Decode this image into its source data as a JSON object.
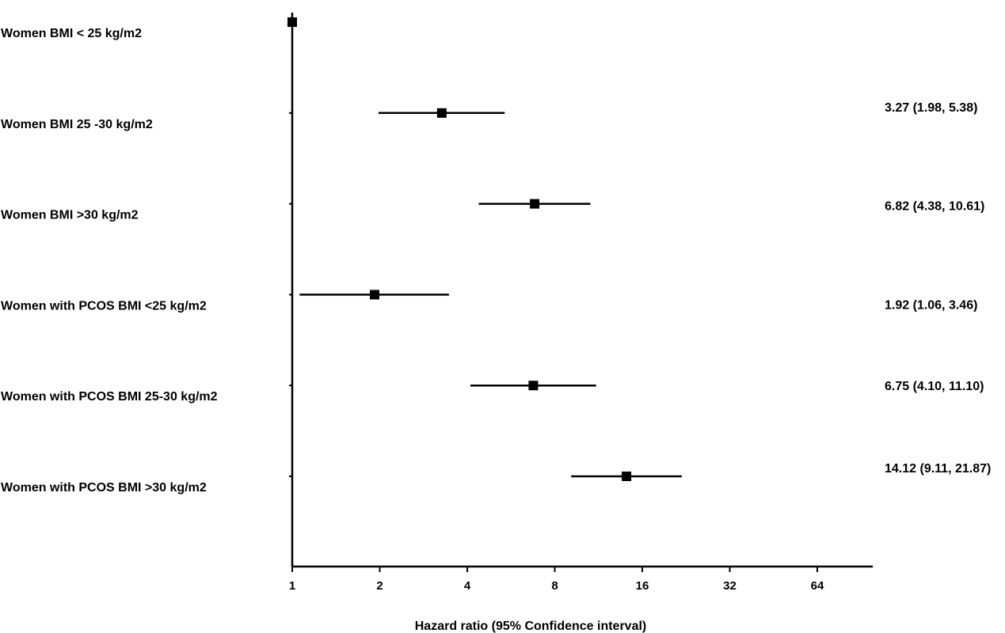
{
  "chart_data": {
    "type": "forest",
    "title": "",
    "xlabel": "Hazard ratio (95%  Confidence interval)",
    "ylabel": "",
    "x_scale": "log2",
    "xlim": [
      1,
      90
    ],
    "x_ticks": [
      1,
      2,
      4,
      8,
      16,
      32,
      64
    ],
    "x_tick_labels": [
      "1",
      "2",
      "4",
      "8",
      "16",
      "32",
      "64"
    ],
    "reference_line": 1,
    "grid": false,
    "legend": "none",
    "colors": {
      "marker": "#000000",
      "line": "#000000"
    },
    "rows": [
      {
        "label": "Women BMI < 25 kg/m2",
        "estimate": 1,
        "lower": 1,
        "upper": 1,
        "text": ""
      },
      {
        "label": "Women BMI 25 -30 kg/m2",
        "estimate": 3.27,
        "lower": 1.98,
        "upper": 5.38,
        "text": "3.27 (1.98, 5.38)"
      },
      {
        "label": "Women BMI >30 kg/m2",
        "estimate": 6.82,
        "lower": 4.38,
        "upper": 10.61,
        "text": "6.82 (4.38, 10.61)"
      },
      {
        "label": "Women with PCOS BMI <25 kg/m2",
        "estimate": 1.92,
        "lower": 1.06,
        "upper": 3.46,
        "text": "1.92 (1.06, 3.46)"
      },
      {
        "label": "Women with PCOS BMI 25-30 kg/m2",
        "estimate": 6.75,
        "lower": 4.1,
        "upper": 11.1,
        "text": "6.75 (4.10, 11.10)"
      },
      {
        "label": "Women with PCOS BMI >30 kg/m2",
        "estimate": 14.12,
        "lower": 9.11,
        "upper": 21.87,
        "text": "14.12 (9.11, 21.87)"
      }
    ]
  }
}
